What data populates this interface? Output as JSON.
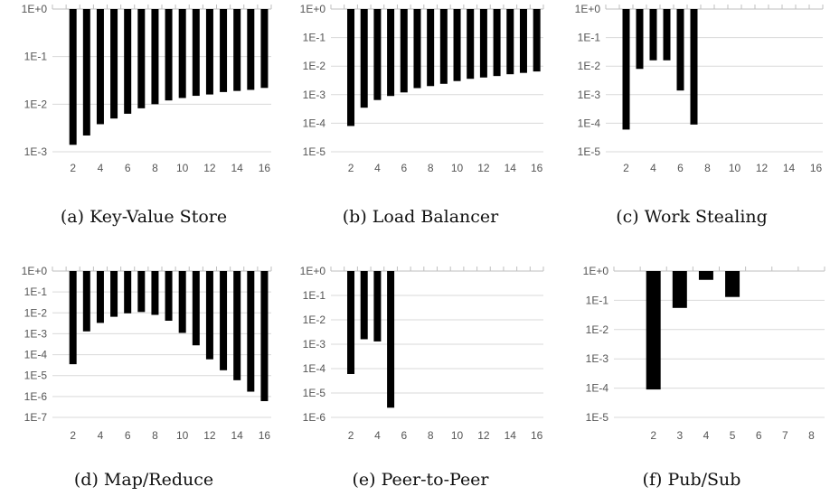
{
  "chart_data": [
    {
      "type": "bar",
      "caption": "(a) Key-Value Store",
      "xlabel": "",
      "ylabel": "",
      "yscale": "log",
      "ylim": [
        0.001,
        1
      ],
      "ytick_values": [
        1,
        0.1,
        0.01,
        0.001
      ],
      "ytick_labels": [
        "1E+0",
        "1E-1",
        "1E-2",
        "1E-3"
      ],
      "grid": true,
      "x_range": [
        1,
        16
      ],
      "xtick_values": [
        2,
        4,
        6,
        8,
        10,
        12,
        14,
        16
      ],
      "xtick_labels": [
        "2",
        "4",
        "6",
        "8",
        "10",
        "12",
        "14",
        "16"
      ],
      "x": [
        2,
        3,
        4,
        5,
        6,
        7,
        8,
        9,
        10,
        11,
        12,
        13,
        14,
        15,
        16
      ],
      "values": [
        0.0014,
        0.0022,
        0.0038,
        0.005,
        0.0063,
        0.0082,
        0.01,
        0.012,
        0.0135,
        0.015,
        0.016,
        0.018,
        0.019,
        0.02,
        0.022
      ],
      "color": "#000000"
    },
    {
      "type": "bar",
      "caption": "(b) Load Balancer",
      "xlabel": "",
      "ylabel": "",
      "yscale": "log",
      "ylim": [
        1e-05,
        1
      ],
      "ytick_values": [
        1,
        0.1,
        0.01,
        0.001,
        0.0001,
        1e-05
      ],
      "ytick_labels": [
        "1E+0",
        "1E-1",
        "1E-2",
        "1E-3",
        "1E-4",
        "1E-5"
      ],
      "grid": true,
      "x_range": [
        1,
        16
      ],
      "xtick_values": [
        2,
        4,
        6,
        8,
        10,
        12,
        14,
        16
      ],
      "xtick_labels": [
        "2",
        "4",
        "6",
        "8",
        "10",
        "12",
        "14",
        "16"
      ],
      "x": [
        2,
        3,
        4,
        5,
        6,
        7,
        8,
        9,
        10,
        11,
        12,
        13,
        14,
        15,
        16
      ],
      "values": [
        8e-05,
        0.00035,
        0.00065,
        0.0009,
        0.0012,
        0.0017,
        0.002,
        0.0024,
        0.003,
        0.0036,
        0.004,
        0.0045,
        0.0052,
        0.0058,
        0.0065
      ],
      "color": "#000000"
    },
    {
      "type": "bar",
      "caption": "(c) Work Stealing",
      "xlabel": "",
      "ylabel": "",
      "yscale": "log",
      "ylim": [
        1e-05,
        1
      ],
      "ytick_values": [
        1,
        0.1,
        0.01,
        0.001,
        0.0001,
        1e-05
      ],
      "ytick_labels": [
        "1E+0",
        "1E-1",
        "1E-2",
        "1E-3",
        "1E-4",
        "1E-5"
      ],
      "grid": true,
      "x_range": [
        1,
        16
      ],
      "xtick_values": [
        2,
        4,
        6,
        8,
        10,
        12,
        14,
        16
      ],
      "xtick_labels": [
        "2",
        "4",
        "6",
        "8",
        "10",
        "12",
        "14",
        "16"
      ],
      "x": [
        2,
        3,
        4,
        5,
        6,
        7
      ],
      "values": [
        6e-05,
        0.008,
        0.016,
        0.016,
        0.0014,
        9e-05
      ],
      "color": "#000000"
    },
    {
      "type": "bar",
      "caption": "(d) Map/Reduce",
      "xlabel": "",
      "ylabel": "",
      "yscale": "log",
      "ylim": [
        1e-07,
        1
      ],
      "ytick_values": [
        1,
        0.1,
        0.01,
        0.001,
        0.0001,
        1e-05,
        1e-06,
        1e-07
      ],
      "ytick_labels": [
        "1E+0",
        "1E-1",
        "1E-2",
        "1E-3",
        "1E-4",
        "1E-5",
        "1E-6",
        "1E-7"
      ],
      "grid": true,
      "x_range": [
        1,
        16
      ],
      "xtick_values": [
        2,
        4,
        6,
        8,
        10,
        12,
        14,
        16
      ],
      "xtick_labels": [
        "2",
        "4",
        "6",
        "8",
        "10",
        "12",
        "14",
        "16"
      ],
      "x": [
        2,
        3,
        4,
        5,
        6,
        7,
        8,
        9,
        10,
        11,
        12,
        13,
        14,
        15,
        16
      ],
      "values": [
        3.5e-05,
        0.0013,
        0.0033,
        0.0065,
        0.0095,
        0.011,
        0.008,
        0.0042,
        0.0011,
        0.00028,
        6e-05,
        1.8e-05,
        6e-06,
        1.7e-06,
        6e-07
      ],
      "color": "#000000"
    },
    {
      "type": "bar",
      "caption": "(e) Peer-to-Peer",
      "xlabel": "",
      "ylabel": "",
      "yscale": "log",
      "ylim": [
        1e-06,
        1
      ],
      "ytick_values": [
        1,
        0.1,
        0.01,
        0.001,
        0.0001,
        1e-05,
        1e-06
      ],
      "ytick_labels": [
        "1E+0",
        "1E-1",
        "1E-2",
        "1E-3",
        "1E-4",
        "1E-5",
        "1E-6"
      ],
      "grid": true,
      "x_range": [
        1,
        16
      ],
      "xtick_values": [
        2,
        4,
        6,
        8,
        10,
        12,
        14,
        16
      ],
      "xtick_labels": [
        "2",
        "4",
        "6",
        "8",
        "10",
        "12",
        "14",
        "16"
      ],
      "x": [
        2,
        3,
        4,
        5
      ],
      "values": [
        6e-05,
        0.0016,
        0.0013,
        2.5e-06
      ],
      "color": "#000000"
    },
    {
      "type": "bar",
      "caption": "(f) Pub/Sub",
      "xlabel": "",
      "ylabel": "",
      "yscale": "log",
      "ylim": [
        1e-05,
        1
      ],
      "ytick_values": [
        1,
        0.1,
        0.01,
        0.001,
        0.0001,
        1e-05
      ],
      "ytick_labels": [
        "1E+0",
        "1E-1",
        "1E-2",
        "1E-3",
        "1E-4",
        "1E-5"
      ],
      "grid": true,
      "x_range": [
        1,
        8
      ],
      "xtick_values": [
        2,
        3,
        4,
        5,
        6,
        7,
        8
      ],
      "xtick_labels": [
        "2",
        "3",
        "4",
        "5",
        "6",
        "7",
        "8"
      ],
      "x": [
        2,
        3,
        4,
        5
      ],
      "values": [
        9e-05,
        0.055,
        0.5,
        0.13
      ],
      "color": "#000000"
    }
  ]
}
